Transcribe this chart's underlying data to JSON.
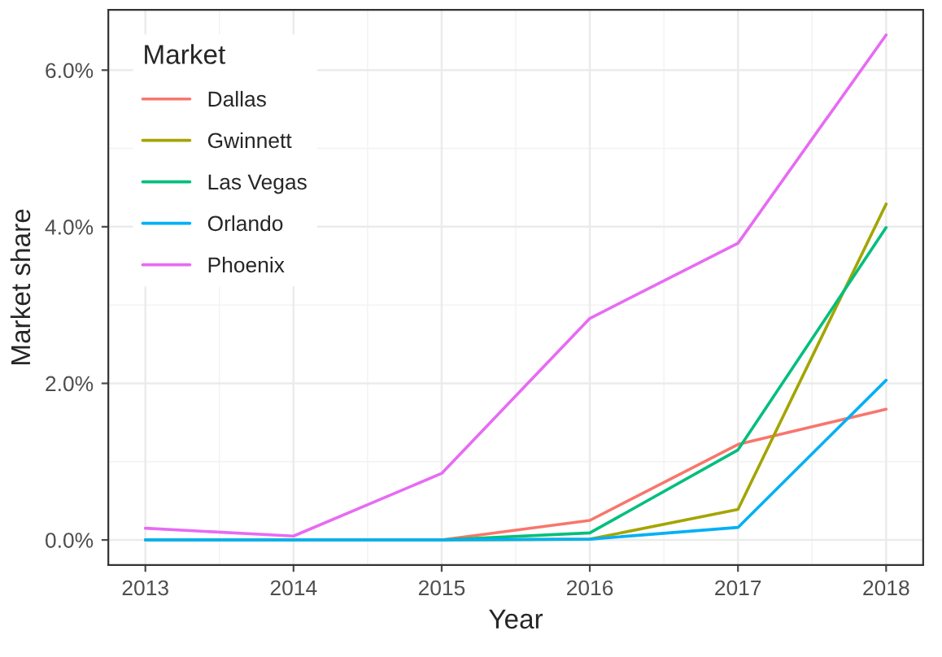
{
  "chart_data": {
    "type": "line",
    "xlabel": "Year",
    "ylabel": "Market share",
    "legend_title": "Market",
    "legend": "top left",
    "grid": true,
    "x": [
      2013,
      2014,
      2015,
      2016,
      2017,
      2018
    ],
    "xlim": [
      2012.75,
      2018.25
    ],
    "xticks": [
      2013,
      2014,
      2015,
      2016,
      2017,
      2018
    ],
    "ylim": [
      -0.32,
      6.77
    ],
    "yticks": [
      {
        "value": 0,
        "label": "0.0%"
      },
      {
        "value": 2,
        "label": "2.0%"
      },
      {
        "value": 4,
        "label": "4.0%"
      },
      {
        "value": 6,
        "label": "6.0%"
      }
    ],
    "series": [
      {
        "name": "Dallas",
        "color": "#f8766d",
        "values": [
          0,
          0,
          0,
          0.25,
          1.22,
          1.67
        ]
      },
      {
        "name": "Gwinnett",
        "color": "#a3a500",
        "values": [
          null,
          null,
          0,
          0.01,
          0.39,
          4.29
        ]
      },
      {
        "name": "Las Vegas",
        "color": "#00bf7d",
        "values": [
          0,
          0,
          0,
          0.09,
          1.15,
          3.99
        ]
      },
      {
        "name": "Orlando",
        "color": "#00b0f6",
        "values": [
          0,
          0,
          0,
          0.01,
          0.16,
          2.04
        ]
      },
      {
        "name": "Phoenix",
        "color": "#e76bf3",
        "values": [
          0.15,
          0.05,
          0.85,
          2.83,
          3.79,
          6.45
        ]
      }
    ]
  }
}
